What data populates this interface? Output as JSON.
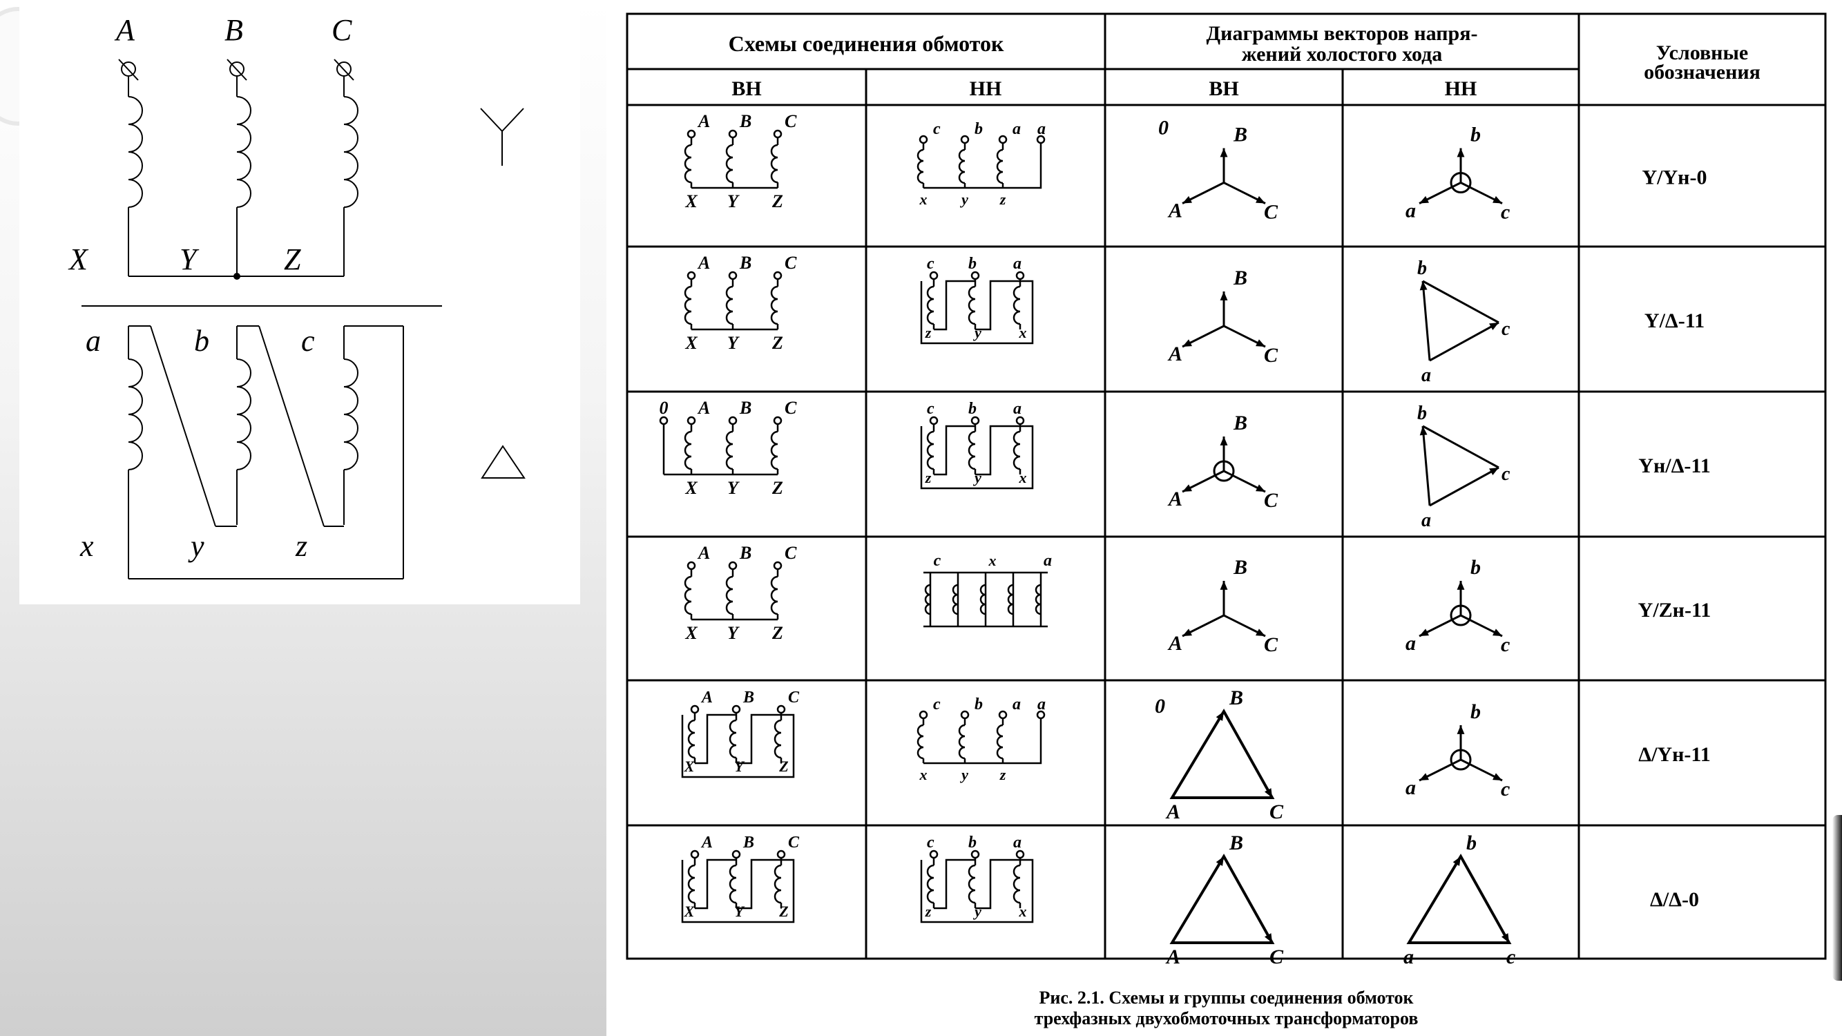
{
  "left_diagram": {
    "hv_terminals": [
      "A",
      "B",
      "C"
    ],
    "hv_ends": [
      "X",
      "Y",
      "Z"
    ],
    "lv_terminals": [
      "a",
      "b",
      "c"
    ],
    "lv_ends": [
      "x",
      "y",
      "z"
    ],
    "star_symbol": "Y",
    "delta_symbol": "△"
  },
  "table": {
    "header_schemes": "Схемы соединения обмоток",
    "header_vectors_line1": "Диаграммы векторов напря-",
    "header_vectors_line2": "жений холостого хода",
    "header_symbols_line1": "Условные",
    "header_symbols_line2": "обозначения",
    "sub_hv": "ВН",
    "sub_lv": "НН",
    "rows": [
      {
        "symbol": "Y/Yн-0"
      },
      {
        "symbol": "Y/Δ-11"
      },
      {
        "symbol": "Yн/Δ-11"
      },
      {
        "symbol": "Y/Zн-11"
      },
      {
        "symbol": "Δ/Yн-11"
      },
      {
        "symbol": "Δ/Δ-0"
      }
    ],
    "neutral_label": "0",
    "hv_letters": [
      "A",
      "B",
      "C"
    ],
    "hv_end_letters": [
      "X",
      "Y",
      "Z"
    ],
    "lv_letters": [
      "a",
      "b",
      "c"
    ],
    "lv_end_letters": [
      "x",
      "y",
      "z"
    ]
  },
  "caption": {
    "line1": "Рис. 2.1. Схемы и группы соединения обмоток",
    "line2": "трехфазных двухобмоточных трансформаторов"
  }
}
